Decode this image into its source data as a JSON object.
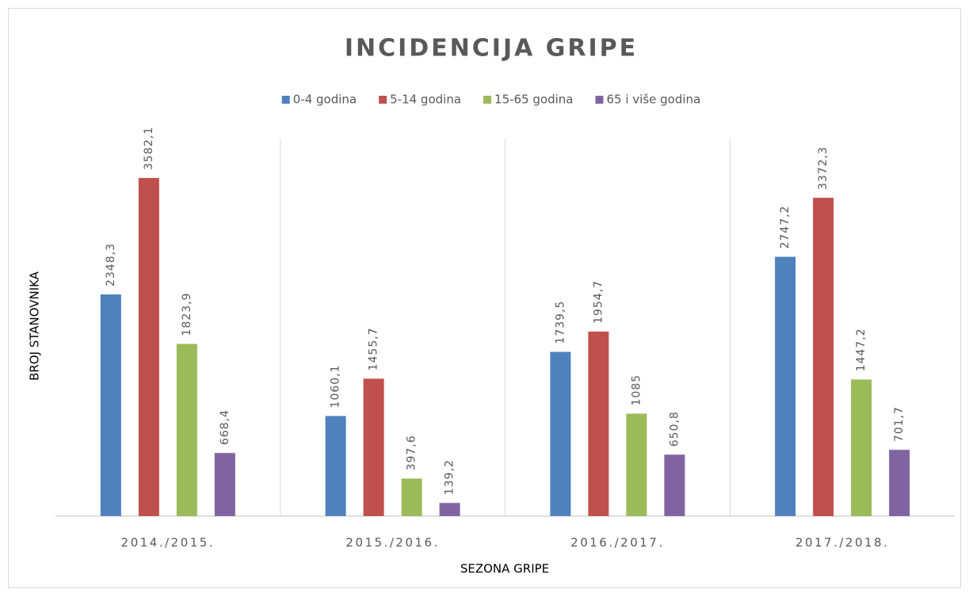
{
  "chart_data": {
    "type": "bar",
    "title": "INCIDENCIJA  GRIPE",
    "x_label": "SEZONA GRIPE",
    "y_label": "BROJ STANOVNIKA",
    "categories": [
      "2014./2015.",
      "2015./2016.",
      "2016./2017.",
      "2017./2018."
    ],
    "series": [
      {
        "name": "0-4 godina",
        "color": "#4f81bd",
        "values": [
          2348.3,
          1060.1,
          1739.5,
          2747.2
        ],
        "value_labels": [
          "2348,3",
          "1060,1",
          "1739,5",
          "2747,2"
        ]
      },
      {
        "name": "5-14 godina",
        "color": "#c0504d",
        "values": [
          3582.1,
          1455.7,
          1954.7,
          3372.3
        ],
        "value_labels": [
          "3582,1",
          "1455,7",
          "1954,7",
          "3372,3"
        ]
      },
      {
        "name": "15-65 godina",
        "color": "#9bbb59",
        "values": [
          1823.9,
          397.6,
          1085,
          1447.2
        ],
        "value_labels": [
          "1823,9",
          "397,6",
          "1085",
          "1447,2"
        ]
      },
      {
        "name": "65 i više godina",
        "color": "#8064a2",
        "values": [
          668.4,
          139.2,
          650.8,
          701.7
        ],
        "value_labels": [
          "668,4",
          "139,2",
          "650,8",
          "701,7"
        ]
      }
    ],
    "ylim": [
      0,
      4000
    ],
    "legend": "top"
  }
}
